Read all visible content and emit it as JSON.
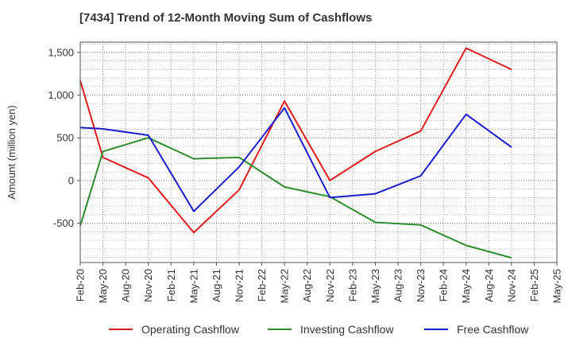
{
  "chart_data": {
    "type": "line",
    "title": "[7434]  Trend of 12-Month Moving Sum of Cashflows",
    "ylabel": "Amount (million yen)",
    "xlabel": "",
    "categories": [
      "Feb-20",
      "May-20",
      "Aug-20",
      "Nov-20",
      "Feb-21",
      "May-21",
      "Aug-21",
      "Nov-21",
      "Feb-22",
      "May-22",
      "Aug-22",
      "Nov-22",
      "Feb-23",
      "May-23",
      "Aug-23",
      "Nov-23",
      "Feb-24",
      "May-24",
      "Aug-24",
      "Nov-24",
      "Feb-25",
      "May-25"
    ],
    "yticks": [
      -500,
      0,
      500,
      1000,
      1500
    ],
    "ytick_labels": [
      "-500",
      "0",
      "500",
      "1,000",
      "1,500"
    ],
    "ylim": [
      -960,
      1620
    ],
    "grid": true,
    "legend_position": "bottom",
    "series": [
      {
        "name": "Operating Cashflow",
        "color": "#e31a1c",
        "points": [
          [
            0,
            1170
          ],
          [
            1,
            270
          ],
          [
            3,
            30
          ],
          [
            5,
            -610
          ],
          [
            7,
            -110
          ],
          [
            9,
            930
          ],
          [
            11,
            0
          ],
          [
            13,
            340
          ],
          [
            15,
            580
          ],
          [
            17,
            1550
          ],
          [
            19,
            1300
          ]
        ]
      },
      {
        "name": "Investing Cashflow",
        "color": "#2e8b2e",
        "points": [
          [
            0,
            -530
          ],
          [
            1,
            340
          ],
          [
            3,
            500
          ],
          [
            5,
            255
          ],
          [
            7,
            270
          ],
          [
            9,
            -75
          ],
          [
            11,
            -190
          ],
          [
            13,
            -490
          ],
          [
            15,
            -520
          ],
          [
            17,
            -760
          ],
          [
            19,
            -905
          ]
        ]
      },
      {
        "name": "Free Cashflow",
        "color": "#1a1acd",
        "points": [
          [
            0,
            620
          ],
          [
            1,
            605
          ],
          [
            3,
            530
          ],
          [
            5,
            -360
          ],
          [
            7,
            160
          ],
          [
            9,
            850
          ],
          [
            11,
            -200
          ],
          [
            13,
            -155
          ],
          [
            15,
            55
          ],
          [
            17,
            775
          ],
          [
            19,
            390
          ]
        ]
      }
    ]
  }
}
